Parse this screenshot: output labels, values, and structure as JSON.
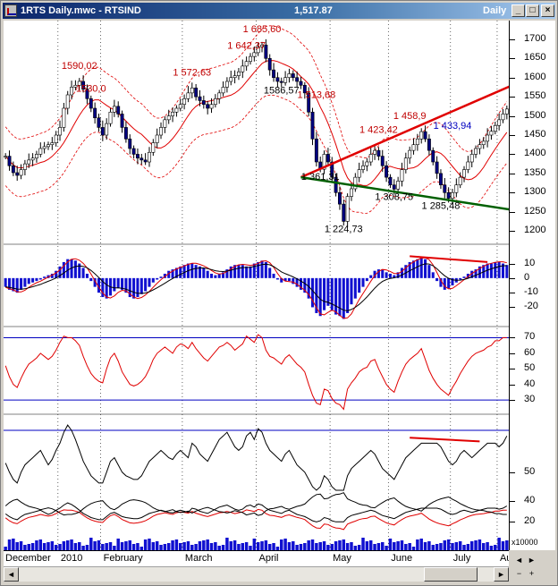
{
  "window": {
    "title": "1RTS Daily.mwc - RTSIND",
    "last_price": "1,517.87",
    "period": "Daily",
    "buttons": {
      "minimize": "_",
      "maximize": "□",
      "close": "×"
    }
  },
  "navigation": {
    "left": "◄",
    "right": "►",
    "minus": "−",
    "plus": "+"
  },
  "scroll": {
    "left": "◄",
    "right": "►"
  },
  "colors": {
    "candle_up": "#ffffff",
    "candle_down": "#000080",
    "band": "#e00000",
    "upper_trend": "#e00000",
    "lower_trend": "#006000",
    "macd_hist": "#1010d0",
    "oscillator": "#e00000",
    "volume": "#1010d0",
    "bound_line": "#0000c0",
    "gridline": "#000000",
    "price_annotation": "#c00000",
    "blue_annotation": "#0000c0"
  },
  "chart_data": {
    "type": "financial-multipanel",
    "symbol": "RTSIND",
    "x_axis": {
      "labels": [
        "December",
        "2010",
        "February",
        "March",
        "April",
        "May",
        "June",
        "July",
        "Aug"
      ],
      "label_index": [
        0,
        14,
        25,
        46,
        65,
        84,
        99,
        115,
        127
      ]
    },
    "n_bars": 130,
    "price_panel": {
      "ylim": [
        1170,
        1730
      ],
      "ticks": [
        1700,
        1650,
        1600,
        1550,
        1500,
        1450,
        1400,
        1350,
        1300,
        1250,
        1200
      ],
      "closes": [
        1395,
        1370,
        1352,
        1345,
        1360,
        1375,
        1385,
        1390,
        1400,
        1415,
        1420,
        1425,
        1430,
        1450,
        1470,
        1520,
        1555,
        1575,
        1580,
        1590,
        1570,
        1545,
        1520,
        1495,
        1470,
        1450,
        1480,
        1510,
        1525,
        1505,
        1470,
        1440,
        1415,
        1400,
        1390,
        1385,
        1380,
        1405,
        1430,
        1450,
        1470,
        1490,
        1500,
        1510,
        1520,
        1530,
        1545,
        1560,
        1573,
        1550,
        1540,
        1530,
        1520,
        1530,
        1545,
        1560,
        1575,
        1590,
        1600,
        1605,
        1615,
        1630,
        1642,
        1655,
        1665,
        1680,
        1685,
        1650,
        1620,
        1600,
        1590,
        1587,
        1600,
        1610,
        1600,
        1590,
        1580,
        1560,
        1510,
        1440,
        1380,
        1361,
        1400,
        1380,
        1340,
        1300,
        1270,
        1225,
        1290,
        1310,
        1340,
        1360,
        1370,
        1380,
        1400,
        1410,
        1395,
        1370,
        1340,
        1320,
        1309,
        1330,
        1360,
        1390,
        1410,
        1425,
        1440,
        1459,
        1440,
        1410,
        1380,
        1350,
        1320,
        1300,
        1285,
        1300,
        1320,
        1340,
        1360,
        1380,
        1400,
        1415,
        1425,
        1434,
        1450,
        1460,
        1475,
        1490,
        1505,
        1518
      ],
      "annotations": [
        {
          "text": "1590,02",
          "bar": 19,
          "price": 1590,
          "color": "red",
          "pos": "above"
        },
        {
          "text": "1530,0",
          "bar": 22,
          "price": 1530,
          "color": "red",
          "pos": "above"
        },
        {
          "text": "1 572,63",
          "bar": 48,
          "price": 1573,
          "color": "red",
          "pos": "above"
        },
        {
          "text": "1 642,37",
          "bar": 62,
          "price": 1642,
          "color": "red",
          "pos": "above"
        },
        {
          "text": "1 685,60",
          "bar": 66,
          "price": 1686,
          "color": "red",
          "pos": "above"
        },
        {
          "text": "1586,57",
          "bar": 71,
          "price": 1587,
          "color": "black",
          "pos": "below"
        },
        {
          "text": "1 513,68",
          "bar": 80,
          "price": 1514,
          "color": "red",
          "pos": "above"
        },
        {
          "text": "1 361,31",
          "bar": 81,
          "price": 1361,
          "color": "black",
          "pos": "below"
        },
        {
          "text": "1 423,42",
          "bar": 96,
          "price": 1423,
          "color": "red",
          "pos": "above"
        },
        {
          "text": "1 224,73",
          "bar": 87,
          "price": 1225,
          "color": "black",
          "pos": "below"
        },
        {
          "text": "1 458,9",
          "bar": 104,
          "price": 1459,
          "color": "red",
          "pos": "above"
        },
        {
          "text": "1 308,75",
          "bar": 100,
          "price": 1309,
          "color": "black",
          "pos": "below"
        },
        {
          "text": "1 433,94",
          "bar": 115,
          "price": 1434,
          "color": "blue",
          "pos": "above"
        },
        {
          "text": "1 285,48",
          "bar": 112,
          "price": 1285,
          "color": "black",
          "pos": "below"
        }
      ],
      "trendlines": [
        {
          "name": "upper",
          "from": [
            76,
            1340
          ],
          "to": [
            129,
            1580
          ],
          "color": "red"
        },
        {
          "name": "lower",
          "from": [
            76,
            1340
          ],
          "to": [
            129,
            1255
          ],
          "color": "green"
        }
      ]
    },
    "macd_panel": {
      "ylim": [
        -32,
        22
      ],
      "ticks": [
        10,
        0,
        -10,
        -20
      ],
      "histogram": [
        -6,
        -8,
        -9,
        -10,
        -8,
        -6,
        -4,
        -3,
        -2,
        -1,
        1,
        2,
        3,
        5,
        8,
        11,
        13,
        13,
        12,
        10,
        7,
        3,
        -2,
        -6,
        -10,
        -13,
        -14,
        -12,
        -9,
        -7,
        -8,
        -10,
        -13,
        -14,
        -13,
        -11,
        -9,
        -6,
        -3,
        -1,
        1,
        3,
        5,
        6,
        7,
        8,
        9,
        10,
        10,
        9,
        8,
        7,
        5,
        3,
        2,
        3,
        4,
        6,
        8,
        9,
        9,
        9,
        8,
        8,
        10,
        11,
        12,
        11,
        7,
        3,
        -1,
        -3,
        -2,
        -2,
        -4,
        -6,
        -8,
        -10,
        -14,
        -20,
        -24,
        -26,
        -22,
        -19,
        -22,
        -25,
        -26,
        -28,
        -24,
        -18,
        -14,
        -10,
        -6,
        -2,
        2,
        5,
        6,
        6,
        4,
        3,
        2,
        4,
        7,
        9,
        11,
        12,
        13,
        14,
        13,
        9,
        4,
        -2,
        -6,
        -8,
        -7,
        -5,
        -3,
        -1,
        1,
        3,
        5,
        6,
        8,
        9,
        10,
        10,
        11,
        11,
        10,
        9
      ],
      "annotation_line": {
        "from_bar": 104,
        "from_value": 15,
        "to_bar": 124,
        "to_value": 11
      }
    },
    "rsi_panel": {
      "ylim": [
        22,
        76
      ],
      "ticks": [
        70,
        60,
        50,
        40,
        30
      ],
      "bounds": [
        70,
        30
      ],
      "values": [
        52,
        45,
        40,
        38,
        44,
        49,
        53,
        55,
        57,
        60,
        58,
        56,
        58,
        62,
        67,
        71,
        70,
        70,
        68,
        65,
        58,
        52,
        47,
        44,
        42,
        41,
        50,
        57,
        60,
        55,
        48,
        44,
        40,
        39,
        40,
        42,
        45,
        50,
        56,
        60,
        62,
        64,
        62,
        60,
        64,
        66,
        65,
        63,
        67,
        63,
        60,
        57,
        55,
        58,
        61,
        64,
        65,
        67,
        65,
        62,
        64,
        66,
        71,
        69,
        67,
        72,
        70,
        62,
        58,
        57,
        55,
        53,
        57,
        59,
        56,
        53,
        51,
        48,
        40,
        33,
        28,
        27,
        37,
        36,
        31,
        28,
        27,
        24,
        37,
        41,
        44,
        48,
        50,
        51,
        55,
        56,
        50,
        45,
        40,
        37,
        35,
        42,
        48,
        53,
        56,
        58,
        60,
        63,
        56,
        49,
        44,
        40,
        37,
        35,
        33,
        38,
        42,
        47,
        51,
        55,
        58,
        60,
        61,
        62,
        64,
        65,
        68,
        68,
        70,
        70
      ]
    },
    "osc_panel": {
      "upper_ticks": [
        50
      ],
      "lower_ticks": [
        40,
        20
      ],
      "upper_values": [
        55,
        50,
        46,
        44,
        50,
        54,
        56,
        58,
        60,
        62,
        58,
        54,
        57,
        62,
        66,
        72,
        76,
        73,
        68,
        62,
        56,
        52,
        48,
        46,
        44,
        44,
        50,
        56,
        58,
        54,
        50,
        48,
        47,
        46,
        46,
        48,
        52,
        56,
        58,
        60,
        62,
        60,
        58,
        57,
        60,
        62,
        60,
        58,
        66,
        64,
        60,
        58,
        56,
        60,
        64,
        68,
        70,
        72,
        68,
        64,
        62,
        64,
        70,
        72,
        68,
        74,
        72,
        66,
        62,
        60,
        58,
        56,
        60,
        62,
        58,
        54,
        52,
        50,
        46,
        42,
        40,
        42,
        48,
        46,
        42,
        40,
        40,
        40,
        48,
        52,
        54,
        56,
        58,
        60,
        62,
        60,
        56,
        52,
        50,
        48,
        46,
        50,
        54,
        58,
        60,
        62,
        64,
        66,
        66,
        66,
        66,
        66,
        64,
        60,
        56,
        54,
        56,
        60,
        62,
        60,
        58,
        60,
        62,
        64,
        66,
        66,
        66,
        64,
        66,
        70
      ],
      "upper_annotation": {
        "from_bar": 104,
        "from_value": 69,
        "to_bar": 122,
        "to_value": 67
      }
    },
    "volume_panel": {
      "unit_label": "x10000",
      "ylim": [
        0,
        18
      ]
    }
  }
}
